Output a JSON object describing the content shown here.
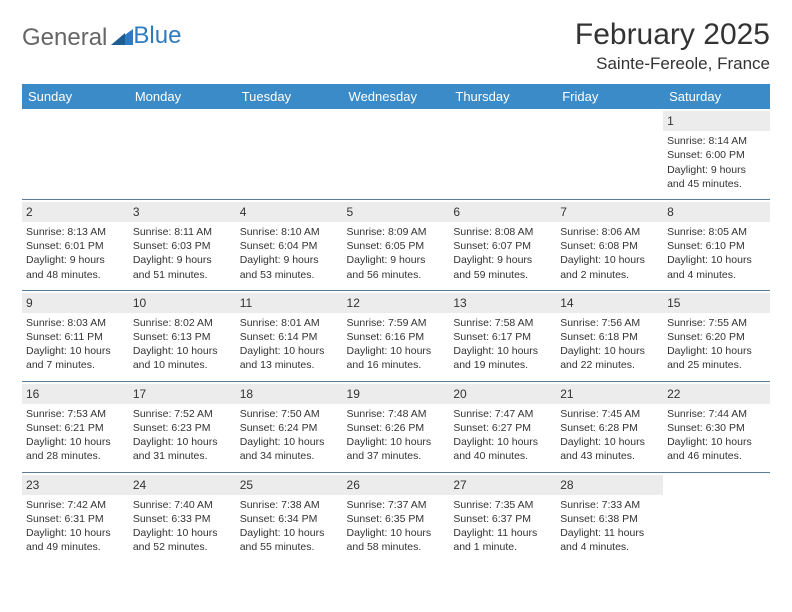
{
  "logo": {
    "text1": "General",
    "text2": "Blue"
  },
  "title": "February 2025",
  "location": "Sainte-Fereole, France",
  "colors": {
    "header_bg": "#3b8bc8",
    "header_fg": "#ffffff",
    "daynum_bg": "#ececec",
    "row_border": "#5a7a9a",
    "logo_gray": "#666666",
    "logo_blue": "#2f7bbf"
  },
  "day_headers": [
    "Sunday",
    "Monday",
    "Tuesday",
    "Wednesday",
    "Thursday",
    "Friday",
    "Saturday"
  ],
  "weeks": [
    [
      {
        "n": "",
        "sr": "",
        "ss": "",
        "dl": ""
      },
      {
        "n": "",
        "sr": "",
        "ss": "",
        "dl": ""
      },
      {
        "n": "",
        "sr": "",
        "ss": "",
        "dl": ""
      },
      {
        "n": "",
        "sr": "",
        "ss": "",
        "dl": ""
      },
      {
        "n": "",
        "sr": "",
        "ss": "",
        "dl": ""
      },
      {
        "n": "",
        "sr": "",
        "ss": "",
        "dl": ""
      },
      {
        "n": "1",
        "sr": "Sunrise: 8:14 AM",
        "ss": "Sunset: 6:00 PM",
        "dl": "Daylight: 9 hours and 45 minutes."
      }
    ],
    [
      {
        "n": "2",
        "sr": "Sunrise: 8:13 AM",
        "ss": "Sunset: 6:01 PM",
        "dl": "Daylight: 9 hours and 48 minutes."
      },
      {
        "n": "3",
        "sr": "Sunrise: 8:11 AM",
        "ss": "Sunset: 6:03 PM",
        "dl": "Daylight: 9 hours and 51 minutes."
      },
      {
        "n": "4",
        "sr": "Sunrise: 8:10 AM",
        "ss": "Sunset: 6:04 PM",
        "dl": "Daylight: 9 hours and 53 minutes."
      },
      {
        "n": "5",
        "sr": "Sunrise: 8:09 AM",
        "ss": "Sunset: 6:05 PM",
        "dl": "Daylight: 9 hours and 56 minutes."
      },
      {
        "n": "6",
        "sr": "Sunrise: 8:08 AM",
        "ss": "Sunset: 6:07 PM",
        "dl": "Daylight: 9 hours and 59 minutes."
      },
      {
        "n": "7",
        "sr": "Sunrise: 8:06 AM",
        "ss": "Sunset: 6:08 PM",
        "dl": "Daylight: 10 hours and 2 minutes."
      },
      {
        "n": "8",
        "sr": "Sunrise: 8:05 AM",
        "ss": "Sunset: 6:10 PM",
        "dl": "Daylight: 10 hours and 4 minutes."
      }
    ],
    [
      {
        "n": "9",
        "sr": "Sunrise: 8:03 AM",
        "ss": "Sunset: 6:11 PM",
        "dl": "Daylight: 10 hours and 7 minutes."
      },
      {
        "n": "10",
        "sr": "Sunrise: 8:02 AM",
        "ss": "Sunset: 6:13 PM",
        "dl": "Daylight: 10 hours and 10 minutes."
      },
      {
        "n": "11",
        "sr": "Sunrise: 8:01 AM",
        "ss": "Sunset: 6:14 PM",
        "dl": "Daylight: 10 hours and 13 minutes."
      },
      {
        "n": "12",
        "sr": "Sunrise: 7:59 AM",
        "ss": "Sunset: 6:16 PM",
        "dl": "Daylight: 10 hours and 16 minutes."
      },
      {
        "n": "13",
        "sr": "Sunrise: 7:58 AM",
        "ss": "Sunset: 6:17 PM",
        "dl": "Daylight: 10 hours and 19 minutes."
      },
      {
        "n": "14",
        "sr": "Sunrise: 7:56 AM",
        "ss": "Sunset: 6:18 PM",
        "dl": "Daylight: 10 hours and 22 minutes."
      },
      {
        "n": "15",
        "sr": "Sunrise: 7:55 AM",
        "ss": "Sunset: 6:20 PM",
        "dl": "Daylight: 10 hours and 25 minutes."
      }
    ],
    [
      {
        "n": "16",
        "sr": "Sunrise: 7:53 AM",
        "ss": "Sunset: 6:21 PM",
        "dl": "Daylight: 10 hours and 28 minutes."
      },
      {
        "n": "17",
        "sr": "Sunrise: 7:52 AM",
        "ss": "Sunset: 6:23 PM",
        "dl": "Daylight: 10 hours and 31 minutes."
      },
      {
        "n": "18",
        "sr": "Sunrise: 7:50 AM",
        "ss": "Sunset: 6:24 PM",
        "dl": "Daylight: 10 hours and 34 minutes."
      },
      {
        "n": "19",
        "sr": "Sunrise: 7:48 AM",
        "ss": "Sunset: 6:26 PM",
        "dl": "Daylight: 10 hours and 37 minutes."
      },
      {
        "n": "20",
        "sr": "Sunrise: 7:47 AM",
        "ss": "Sunset: 6:27 PM",
        "dl": "Daylight: 10 hours and 40 minutes."
      },
      {
        "n": "21",
        "sr": "Sunrise: 7:45 AM",
        "ss": "Sunset: 6:28 PM",
        "dl": "Daylight: 10 hours and 43 minutes."
      },
      {
        "n": "22",
        "sr": "Sunrise: 7:44 AM",
        "ss": "Sunset: 6:30 PM",
        "dl": "Daylight: 10 hours and 46 minutes."
      }
    ],
    [
      {
        "n": "23",
        "sr": "Sunrise: 7:42 AM",
        "ss": "Sunset: 6:31 PM",
        "dl": "Daylight: 10 hours and 49 minutes."
      },
      {
        "n": "24",
        "sr": "Sunrise: 7:40 AM",
        "ss": "Sunset: 6:33 PM",
        "dl": "Daylight: 10 hours and 52 minutes."
      },
      {
        "n": "25",
        "sr": "Sunrise: 7:38 AM",
        "ss": "Sunset: 6:34 PM",
        "dl": "Daylight: 10 hours and 55 minutes."
      },
      {
        "n": "26",
        "sr": "Sunrise: 7:37 AM",
        "ss": "Sunset: 6:35 PM",
        "dl": "Daylight: 10 hours and 58 minutes."
      },
      {
        "n": "27",
        "sr": "Sunrise: 7:35 AM",
        "ss": "Sunset: 6:37 PM",
        "dl": "Daylight: 11 hours and 1 minute."
      },
      {
        "n": "28",
        "sr": "Sunrise: 7:33 AM",
        "ss": "Sunset: 6:38 PM",
        "dl": "Daylight: 11 hours and 4 minutes."
      },
      {
        "n": "",
        "sr": "",
        "ss": "",
        "dl": ""
      }
    ]
  ]
}
